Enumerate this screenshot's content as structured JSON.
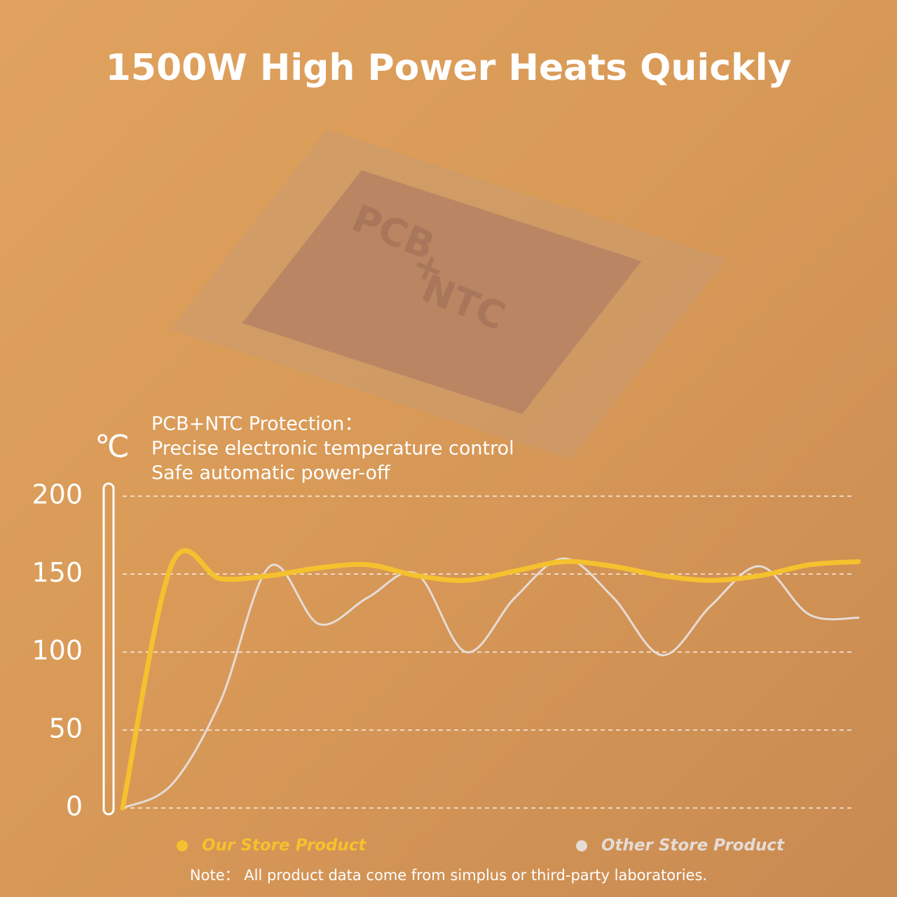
{
  "chart_data": {
    "type": "line",
    "title": "1500W High Power Heats Quickly",
    "background_text": [
      "PCB",
      "+",
      "NTC"
    ],
    "annotations": [
      "PCB+NTC Protection：",
      "Precise electronic temperature control",
      "Safe automatic power-off"
    ],
    "y_label": "℃",
    "categories": [
      null,
      null,
      null,
      null,
      null,
      null,
      null,
      null,
      null,
      null,
      null,
      null,
      null,
      null,
      null,
      null
    ],
    "series": [
      {
        "name": "Our Store Product",
        "color": "#f5c12e",
        "values": [
          0,
          156,
          147,
          149,
          154,
          156,
          149,
          146,
          152,
          158,
          155,
          149,
          146,
          149,
          156,
          158
        ]
      },
      {
        "name": "Other Store Product",
        "color": "#e6dcd6",
        "values": [
          0,
          15,
          69,
          155,
          118,
          135,
          150,
          100,
          135,
          160,
          135,
          98,
          130,
          155,
          124,
          122
        ]
      }
    ],
    "ylim": [
      0,
      200
    ],
    "yticks": [
      0,
      50,
      100,
      150,
      200
    ],
    "grid": true,
    "note": "Note：  All product data come from simplus or  third-party laboratories."
  }
}
